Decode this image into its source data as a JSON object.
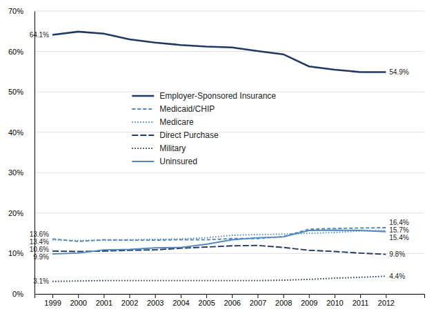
{
  "chart_data": {
    "type": "line",
    "x": [
      1999,
      2000,
      2001,
      2002,
      2003,
      2004,
      2005,
      2006,
      2007,
      2008,
      2009,
      2010,
      2011,
      2012
    ],
    "xlim": [
      1998.3,
      2013.5
    ],
    "xticks": [
      1999,
      2000,
      2001,
      2002,
      2003,
      2004,
      2005,
      2006,
      2007,
      2008,
      2009,
      2010,
      2011,
      2012
    ],
    "ylim": [
      0,
      70
    ],
    "yticks": [
      {
        "value": 0,
        "label": "0%"
      },
      {
        "value": 10,
        "label": "10%"
      },
      {
        "value": 20,
        "label": "20%"
      },
      {
        "value": 30,
        "label": "30%"
      },
      {
        "value": 40,
        "label": "40%"
      },
      {
        "value": 50,
        "label": "50%"
      },
      {
        "value": 60,
        "label": "60%"
      },
      {
        "value": 70,
        "label": "70%"
      }
    ],
    "grid": true,
    "legend": "upper left",
    "series": [
      {
        "name": "Employer-Sponsored Insurance",
        "color": "#1F3864",
        "line_style": "solid",
        "values": [
          64.1,
          64.9,
          64.4,
          63.0,
          62.2,
          61.6,
          61.2,
          61.0,
          60.1,
          59.3,
          56.3,
          55.5,
          54.9,
          54.9
        ]
      },
      {
        "name": "Medicaid/CHIP",
        "color": "#4E87C4",
        "line_style": "dashed",
        "values": [
          13.6,
          13.0,
          13.4,
          13.3,
          13.3,
          13.4,
          13.4,
          13.7,
          13.7,
          14.2,
          16.0,
          16.2,
          16.3,
          16.4
        ]
      },
      {
        "name": "Medicare",
        "color": "#4E87C4",
        "line_style": "dotted",
        "values": [
          13.4,
          13.2,
          13.3,
          13.4,
          13.5,
          13.6,
          13.9,
          14.5,
          14.7,
          14.8,
          15.0,
          15.2,
          15.6,
          15.7
        ]
      },
      {
        "name": "Direct Purchase",
        "color": "#1F3864",
        "line_style": "longdash",
        "values": [
          10.6,
          10.5,
          10.6,
          10.8,
          10.9,
          11.3,
          11.6,
          11.9,
          12.0,
          11.5,
          10.8,
          10.5,
          10.1,
          9.8
        ]
      },
      {
        "name": "Military",
        "color": "#1F3864",
        "line_style": "dotted",
        "values": [
          3.1,
          3.2,
          3.3,
          3.3,
          3.3,
          3.3,
          3.3,
          3.3,
          3.3,
          3.4,
          3.6,
          3.9,
          4.1,
          4.4
        ]
      },
      {
        "name": "Uninsured",
        "color": "#4E87C4",
        "line_style": "solid",
        "values": [
          9.9,
          10.1,
          10.9,
          11.0,
          11.4,
          11.5,
          12.3,
          13.4,
          13.9,
          14.1,
          15.7,
          15.8,
          15.7,
          15.4
        ]
      }
    ],
    "annotations": [
      {
        "text": "64.1%",
        "x": 1999,
        "y": 64.1
      },
      {
        "text": "13.6%",
        "x": 1999,
        "y": 13.6
      },
      {
        "text": "13.4%",
        "x": 1999,
        "y": 13.4
      },
      {
        "text": "10.6%",
        "x": 1999,
        "y": 10.6
      },
      {
        "text": "9.9%",
        "x": 1999,
        "y": 9.9
      },
      {
        "text": "3.1%",
        "x": 1999,
        "y": 3.1
      },
      {
        "text": "54.9%",
        "x": 2012,
        "y": 54.9
      },
      {
        "text": "16.4%",
        "x": 2012,
        "y": 16.4
      },
      {
        "text": "15.7%",
        "x": 2012,
        "y": 15.7
      },
      {
        "text": "15.4%",
        "x": 2012,
        "y": 15.4
      },
      {
        "text": "9.8%",
        "x": 2012,
        "y": 9.8
      },
      {
        "text": "4.4%",
        "x": 2012,
        "y": 4.4
      }
    ]
  }
}
